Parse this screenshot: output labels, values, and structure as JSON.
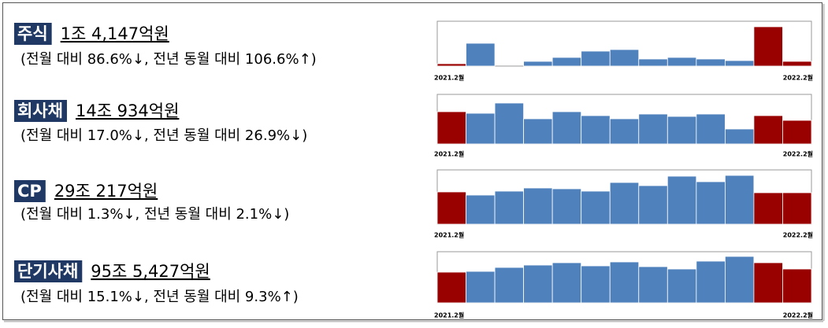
{
  "chart_data": [
    {
      "type": "bar",
      "label": "주식",
      "amount": "1조 4,147억원",
      "change": "(전월 대비 86.6%↓, 전년 동월 대비 106.6%↑)",
      "categories": [
        "2021.2월",
        null,
        null,
        null,
        null,
        null,
        null,
        null,
        null,
        null,
        null,
        null,
        "2022.2월"
      ],
      "values": [
        3,
        29,
        0,
        6,
        11,
        19,
        21,
        9,
        11,
        9,
        7,
        50,
        6
      ],
      "colors": [
        "#990000",
        "#4f81bd",
        "#4f81bd",
        "#4f81bd",
        "#4f81bd",
        "#4f81bd",
        "#4f81bd",
        "#4f81bd",
        "#4f81bd",
        "#4f81bd",
        "#4f81bd",
        "#990000",
        "#990000"
      ]
    },
    {
      "type": "bar",
      "label": "회사채",
      "amount": "14조 934억원",
      "change": "(전월 대비 17.0%↓, 전년 동월 대비 26.9%↓)",
      "categories": [
        "2021.2월",
        null,
        null,
        null,
        null,
        null,
        null,
        null,
        null,
        null,
        null,
        null,
        "2022.2월"
      ],
      "values": [
        41,
        39,
        52,
        32,
        41,
        36,
        32,
        38,
        35,
        38,
        19,
        36,
        30
      ],
      "colors": [
        "#990000",
        "#4f81bd",
        "#4f81bd",
        "#4f81bd",
        "#4f81bd",
        "#4f81bd",
        "#4f81bd",
        "#4f81bd",
        "#4f81bd",
        "#4f81bd",
        "#4f81bd",
        "#990000",
        "#990000"
      ]
    },
    {
      "type": "bar",
      "label": "CP",
      "amount": "29조 217억원",
      "change": "(전월 대비 1.3%↓, 전년 동월 대비 2.1%↓)",
      "categories": [
        "2021.2월",
        null,
        null,
        null,
        null,
        null,
        null,
        null,
        null,
        null,
        null,
        null,
        "2022.2월"
      ],
      "values": [
        41,
        37,
        42,
        46,
        45,
        42,
        53,
        49,
        61,
        54,
        62,
        40,
        40
      ],
      "colors": [
        "#990000",
        "#4f81bd",
        "#4f81bd",
        "#4f81bd",
        "#4f81bd",
        "#4f81bd",
        "#4f81bd",
        "#4f81bd",
        "#4f81bd",
        "#4f81bd",
        "#4f81bd",
        "#990000",
        "#990000"
      ]
    },
    {
      "type": "bar",
      "label": "단기사채",
      "amount": "95조 5,427억원",
      "change": "(전월 대비 15.1%↓, 전년 동월 대비 9.3%↑)",
      "categories": [
        "2021.2월",
        null,
        null,
        null,
        null,
        null,
        null,
        null,
        null,
        null,
        null,
        null,
        "2022.2월"
      ],
      "values": [
        39,
        40,
        45,
        48,
        51,
        47,
        52,
        46,
        43,
        53,
        59,
        51,
        43
      ],
      "colors": [
        "#990000",
        "#4f81bd",
        "#4f81bd",
        "#4f81bd",
        "#4f81bd",
        "#4f81bd",
        "#4f81bd",
        "#4f81bd",
        "#4f81bd",
        "#4f81bd",
        "#4f81bd",
        "#990000",
        "#990000"
      ]
    }
  ]
}
